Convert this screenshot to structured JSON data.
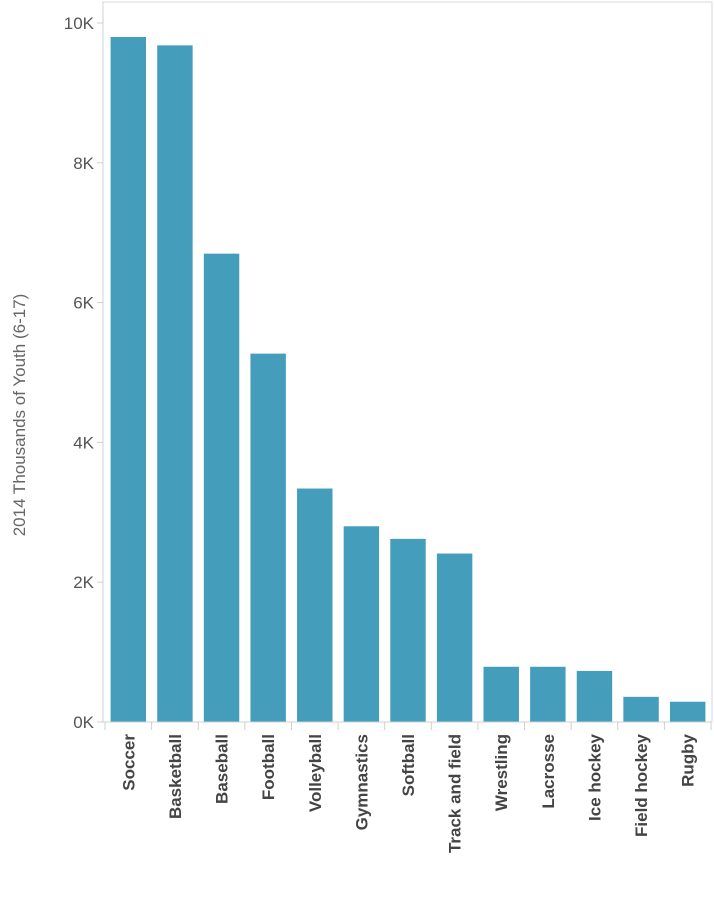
{
  "chart_data": {
    "type": "bar",
    "title": "",
    "xlabel": "",
    "ylabel": "2014 Thousands of Youth (6-17)",
    "categories": [
      "Soccer",
      "Basketball",
      "Baseball",
      "Football",
      "Volleyball",
      "Gymnastics",
      "Softball",
      "Track and field",
      "Wrestling",
      "Lacrosse",
      "Ice hockey",
      "Field hockey",
      "Rugby"
    ],
    "values": [
      9800,
      9680,
      6700,
      5270,
      3340,
      2800,
      2620,
      2410,
      790,
      790,
      730,
      360,
      290
    ],
    "ylim": [
      0,
      10000
    ],
    "yticks": [
      0,
      2000,
      4000,
      6000,
      8000,
      10000
    ],
    "ytick_labels": [
      "0K",
      "2K",
      "4K",
      "6K",
      "8K",
      "10K"
    ],
    "bar_color": "#439dbb",
    "grid": false,
    "legend": "none"
  }
}
